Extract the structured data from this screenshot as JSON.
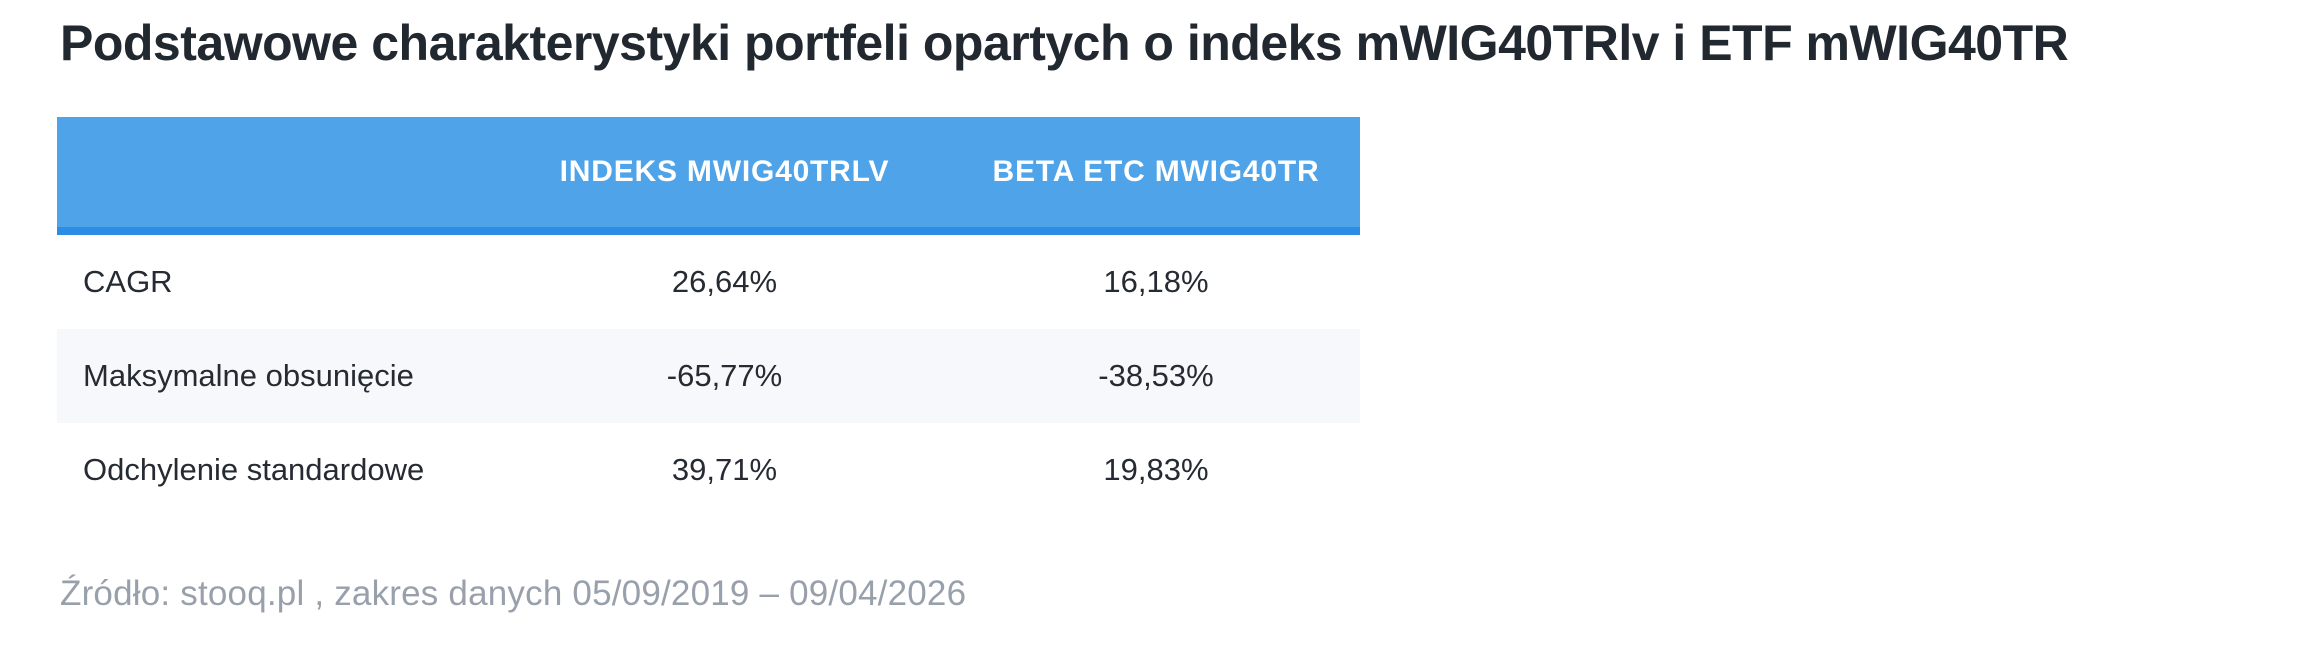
{
  "title": "Podstawowe charakterystyki portfeli opartych o indeks mWIG40TRlv i ETF mWIG40TR",
  "table": {
    "columns": [
      "",
      "INDEKS MWIG40TRLV",
      "BETA ETC MWIG40TR"
    ],
    "rows": [
      {
        "label": "CAGR",
        "values": [
          "26,64%",
          "16,18%"
        ]
      },
      {
        "label": "Maksymalne obsunięcie",
        "values": [
          "-65,77%",
          "-38,53%"
        ]
      },
      {
        "label": "Odchylenie standardowe",
        "values": [
          "39,71%",
          "19,83%"
        ]
      }
    ]
  },
  "source": "Źródło: stooq.pl , zakres danych 05/09/2019 – 09/04/2026",
  "colors": {
    "header_bg": "#4FA3E8",
    "header_border_bottom": "#2B8DE3",
    "alt_row_bg": "#F7F8FB",
    "title_text": "#222830",
    "body_text": "#262B33",
    "source_text": "#98A0AC"
  },
  "chart_data": {
    "type": "table",
    "title": "Podstawowe charakterystyki portfeli opartych o indeks mWIG40TRlv i ETF mWIG40TR",
    "columns": [
      "INDEKS MWIG40TRLV",
      "BETA ETC MWIG40TR"
    ],
    "metrics": [
      {
        "name": "CAGR",
        "INDEKS MWIG40TRLV": "26,64%",
        "BETA ETC MWIG40TR": "16,18%"
      },
      {
        "name": "Maksymalne obsunięcie",
        "INDEKS MWIG40TRLV": "-65,77%",
        "BETA ETC MWIG40TR": "-38,53%"
      },
      {
        "name": "Odchylenie standardowe",
        "INDEKS MWIG40TRLV": "39,71%",
        "BETA ETC MWIG40TR": "19,83%"
      }
    ],
    "source_note": "Źródło: stooq.pl , zakres danych 05/09/2019 – 09/04/2026"
  }
}
